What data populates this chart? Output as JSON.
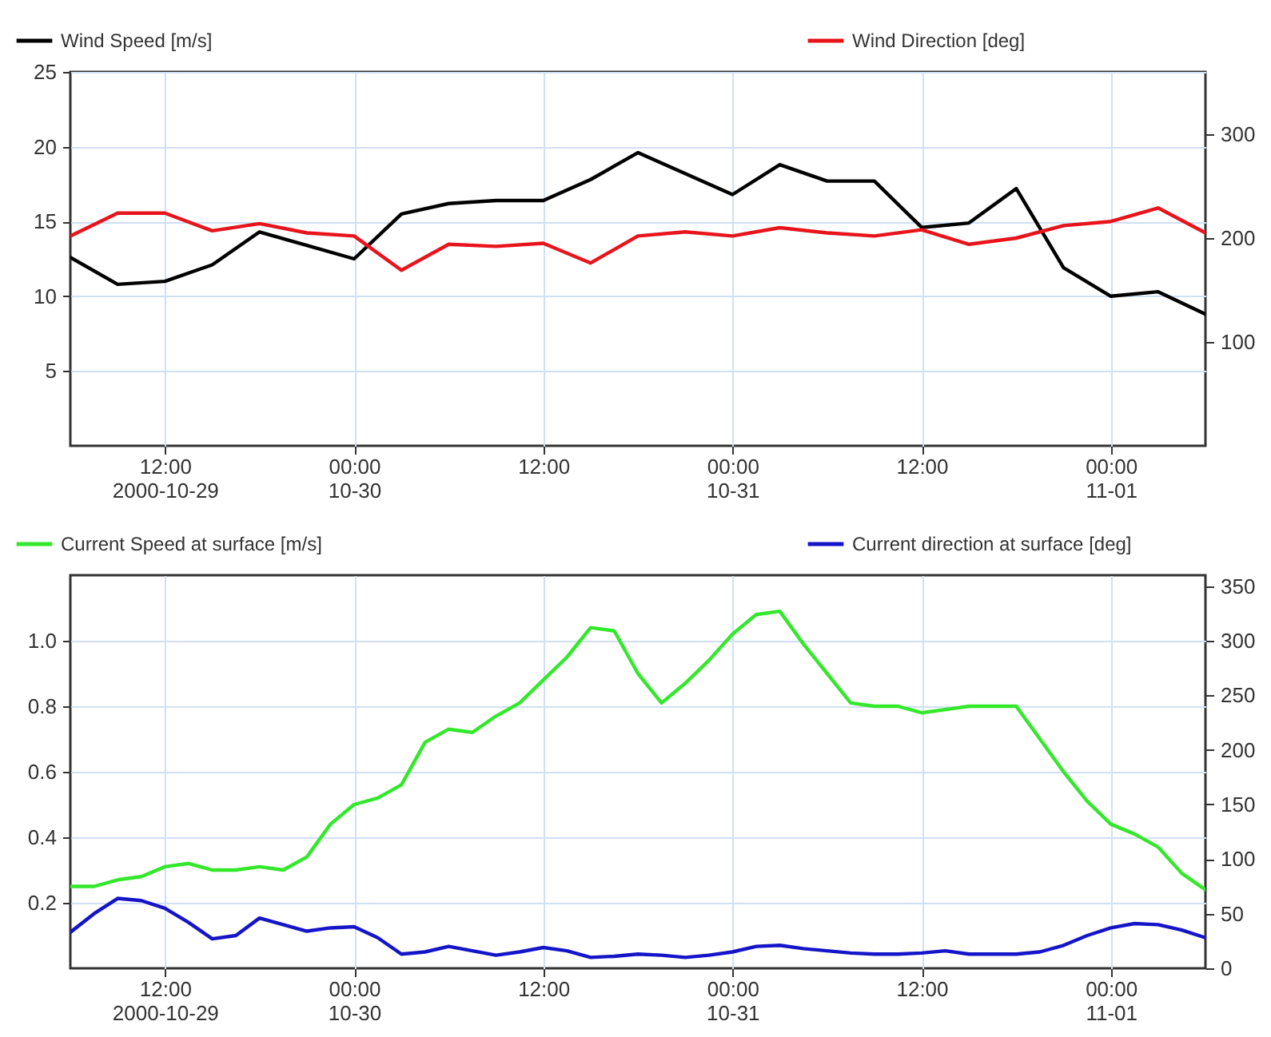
{
  "chart_data": [
    {
      "type": "line",
      "grid": true,
      "legend": "top",
      "line_style": "solid",
      "marker": "none",
      "x": [
        "2000-10-29T06:00",
        "2000-10-29T09:00",
        "2000-10-29T12:00",
        "2000-10-29T15:00",
        "2000-10-29T18:00",
        "2000-10-29T21:00",
        "2000-10-30T00:00",
        "2000-10-30T03:00",
        "2000-10-30T06:00",
        "2000-10-30T09:00",
        "2000-10-30T12:00",
        "2000-10-30T15:00",
        "2000-10-30T18:00",
        "2000-10-30T21:00",
        "2000-10-31T00:00",
        "2000-10-31T03:00",
        "2000-10-31T06:00",
        "2000-10-31T09:00",
        "2000-10-31T12:00",
        "2000-10-31T15:00",
        "2000-10-31T18:00",
        "2000-10-31T21:00",
        "2000-11-01T00:00",
        "2000-11-01T03:00",
        "2000-11-01T06:00"
      ],
      "xlim": [
        "2000-10-29T06:00",
        "2000-11-01T06:00"
      ],
      "xticks": [
        {
          "value": "2000-10-29T12:00",
          "label": "12:00\n2000-10-29"
        },
        {
          "value": "2000-10-30T00:00",
          "label": "00:00\n10-30"
        },
        {
          "value": "2000-10-30T12:00",
          "label": "12:00"
        },
        {
          "value": "2000-10-31T00:00",
          "label": "00:00\n10-31"
        },
        {
          "value": "2000-10-31T12:00",
          "label": "12:00"
        },
        {
          "value": "2000-11-01T00:00",
          "label": "00:00\n11-01"
        }
      ],
      "ylim": [
        0,
        25
      ],
      "yticks": [
        5,
        10,
        15,
        20,
        25
      ],
      "y2lim": [
        0,
        360
      ],
      "y2ticks": [
        100,
        200,
        300
      ],
      "series": [
        {
          "name": "Wind Speed [m/s]",
          "color": "#000000",
          "values": [
            12.6,
            10.8,
            11.0,
            12.1,
            14.3,
            13.4,
            12.5,
            15.5,
            16.2,
            16.4,
            16.4,
            17.8,
            19.6,
            18.2,
            16.8,
            18.8,
            17.7,
            17.7,
            14.6,
            14.9,
            17.2,
            11.9,
            10.0,
            10.3,
            8.8
          ]
        },
        {
          "name": "Wind Direction  [deg]",
          "color": "#e8141c",
          "axis": "y2",
          "values": [
            202,
            224,
            224,
            207,
            214,
            205,
            202,
            169,
            194,
            192,
            195,
            176,
            202,
            206,
            202,
            210,
            205,
            202,
            208,
            194,
            200,
            212,
            216,
            229,
            205
          ]
        }
      ]
    },
    {
      "type": "line",
      "grid": true,
      "legend": "top",
      "line_style": "solid",
      "marker": "none",
      "x": [
        "2000-10-29T06:00",
        "2000-10-29T07:30",
        "2000-10-29T09:00",
        "2000-10-29T10:30",
        "2000-10-29T12:00",
        "2000-10-29T13:30",
        "2000-10-29T15:00",
        "2000-10-29T16:30",
        "2000-10-29T18:00",
        "2000-10-29T19:30",
        "2000-10-29T21:00",
        "2000-10-29T22:30",
        "2000-10-30T00:00",
        "2000-10-30T01:30",
        "2000-10-30T03:00",
        "2000-10-30T04:30",
        "2000-10-30T06:00",
        "2000-10-30T07:30",
        "2000-10-30T09:00",
        "2000-10-30T10:30",
        "2000-10-30T12:00",
        "2000-10-30T13:30",
        "2000-10-30T15:00",
        "2000-10-30T16:30",
        "2000-10-30T18:00",
        "2000-10-30T19:30",
        "2000-10-30T21:00",
        "2000-10-30T22:30",
        "2000-10-31T00:00",
        "2000-10-31T01:30",
        "2000-10-31T03:00",
        "2000-10-31T04:30",
        "2000-10-31T06:00",
        "2000-10-31T07:30",
        "2000-10-31T09:00",
        "2000-10-31T10:30",
        "2000-10-31T12:00",
        "2000-10-31T13:30",
        "2000-10-31T15:00",
        "2000-10-31T16:30",
        "2000-10-31T18:00",
        "2000-10-31T19:30",
        "2000-10-31T21:00",
        "2000-10-31T22:30",
        "2000-11-01T00:00",
        "2000-11-01T01:30",
        "2000-11-01T03:00",
        "2000-11-01T04:30",
        "2000-11-01T06:00"
      ],
      "xlim": [
        "2000-10-29T06:00",
        "2000-11-01T06:00"
      ],
      "xticks": [
        {
          "value": "2000-10-29T12:00",
          "label": "12:00\n2000-10-29"
        },
        {
          "value": "2000-10-30T00:00",
          "label": "00:00\n10-30"
        },
        {
          "value": "2000-10-30T12:00",
          "label": "12:00"
        },
        {
          "value": "2000-10-31T00:00",
          "label": "00:00\n10-31"
        },
        {
          "value": "2000-10-31T12:00",
          "label": "12:00"
        },
        {
          "value": "2000-11-01T00:00",
          "label": "00:00\n11-01"
        }
      ],
      "ylim": [
        0,
        1.2
      ],
      "yticks": [
        0.2,
        0.4,
        0.6,
        0.8,
        {
          "value": 1,
          "label": "1.0"
        }
      ],
      "y2lim": [
        0,
        360
      ],
      "y2ticks": [
        0,
        50,
        100,
        150,
        200,
        250,
        300,
        350
      ],
      "series": [
        {
          "name": "Current Speed at surface [m/s]",
          "color": "#33e82a",
          "values": [
            0.25,
            0.25,
            0.27,
            0.28,
            0.31,
            0.32,
            0.3,
            0.3,
            0.31,
            0.3,
            0.34,
            0.44,
            0.5,
            0.52,
            0.56,
            0.69,
            0.73,
            0.72,
            0.77,
            0.81,
            0.88,
            0.95,
            1.04,
            1.03,
            0.9,
            0.81,
            0.87,
            0.94,
            1.02,
            1.08,
            1.09,
            0.99,
            0.9,
            0.81,
            0.8,
            0.8,
            0.78,
            0.79,
            0.8,
            0.8,
            0.8,
            0.7,
            0.6,
            0.51,
            0.44,
            0.41,
            0.37,
            0.29,
            0.24
          ]
        },
        {
          "name": "Current direction at surface [deg]",
          "color": "#1414c8",
          "axis": "y2",
          "values": [
            33,
            50,
            64,
            62,
            55,
            42,
            27,
            30,
            46,
            40,
            34,
            37,
            38,
            28,
            13,
            15,
            20,
            16,
            12,
            15,
            19,
            16,
            10,
            11,
            13,
            12,
            10,
            12,
            15,
            20,
            21,
            18,
            16,
            14,
            13,
            13,
            14,
            16,
            13,
            13,
            13,
            15,
            21,
            30,
            37,
            41,
            40,
            35,
            28
          ]
        }
      ]
    }
  ]
}
